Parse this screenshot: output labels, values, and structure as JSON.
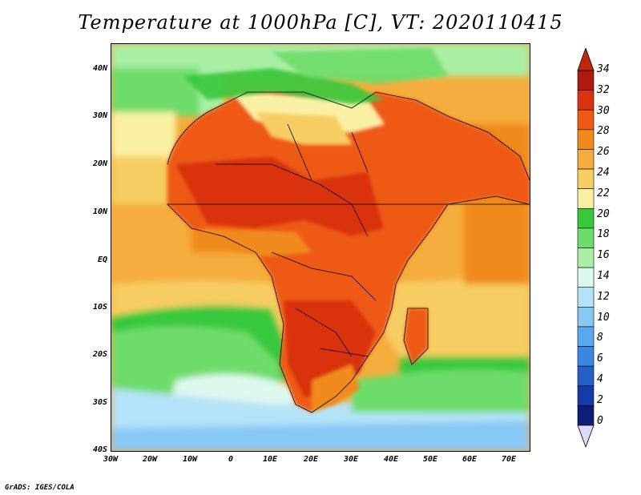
{
  "title": "Temperature at 1000hPa [C], VT: 2020110415",
  "footer": "GrADS: IGES/COLA",
  "y_axis_labels": [
    "40N",
    "30N",
    "20N",
    "10N",
    "EQ",
    "10S",
    "20S",
    "30S",
    "40S"
  ],
  "x_axis_labels": [
    "30W",
    "20W",
    "10W",
    "0",
    "10E",
    "20E",
    "30E",
    "40E",
    "50E",
    "60E",
    "70E"
  ],
  "colorbar": {
    "labels": [
      "34",
      "32",
      "30",
      "28",
      "26",
      "24",
      "22",
      "20",
      "18",
      "16",
      "14",
      "12",
      "10",
      "8",
      "6",
      "4",
      "2",
      "0"
    ],
    "colors": [
      "#b01a0e",
      "#d9320f",
      "#ee5a14",
      "#f08a1c",
      "#f4ad3c",
      "#f6cd62",
      "#faf0a4",
      "#38c83c",
      "#6edc6a",
      "#a8eea4",
      "#def8ee",
      "#b4e2f8",
      "#88c8f4",
      "#5aa8ee",
      "#3a86e0",
      "#2460c8",
      "#143ca8",
      "#0a1e7a"
    ],
    "top_arrow_color": "#c0280e",
    "bottom_arrow_color": "#dcdcfa"
  }
}
